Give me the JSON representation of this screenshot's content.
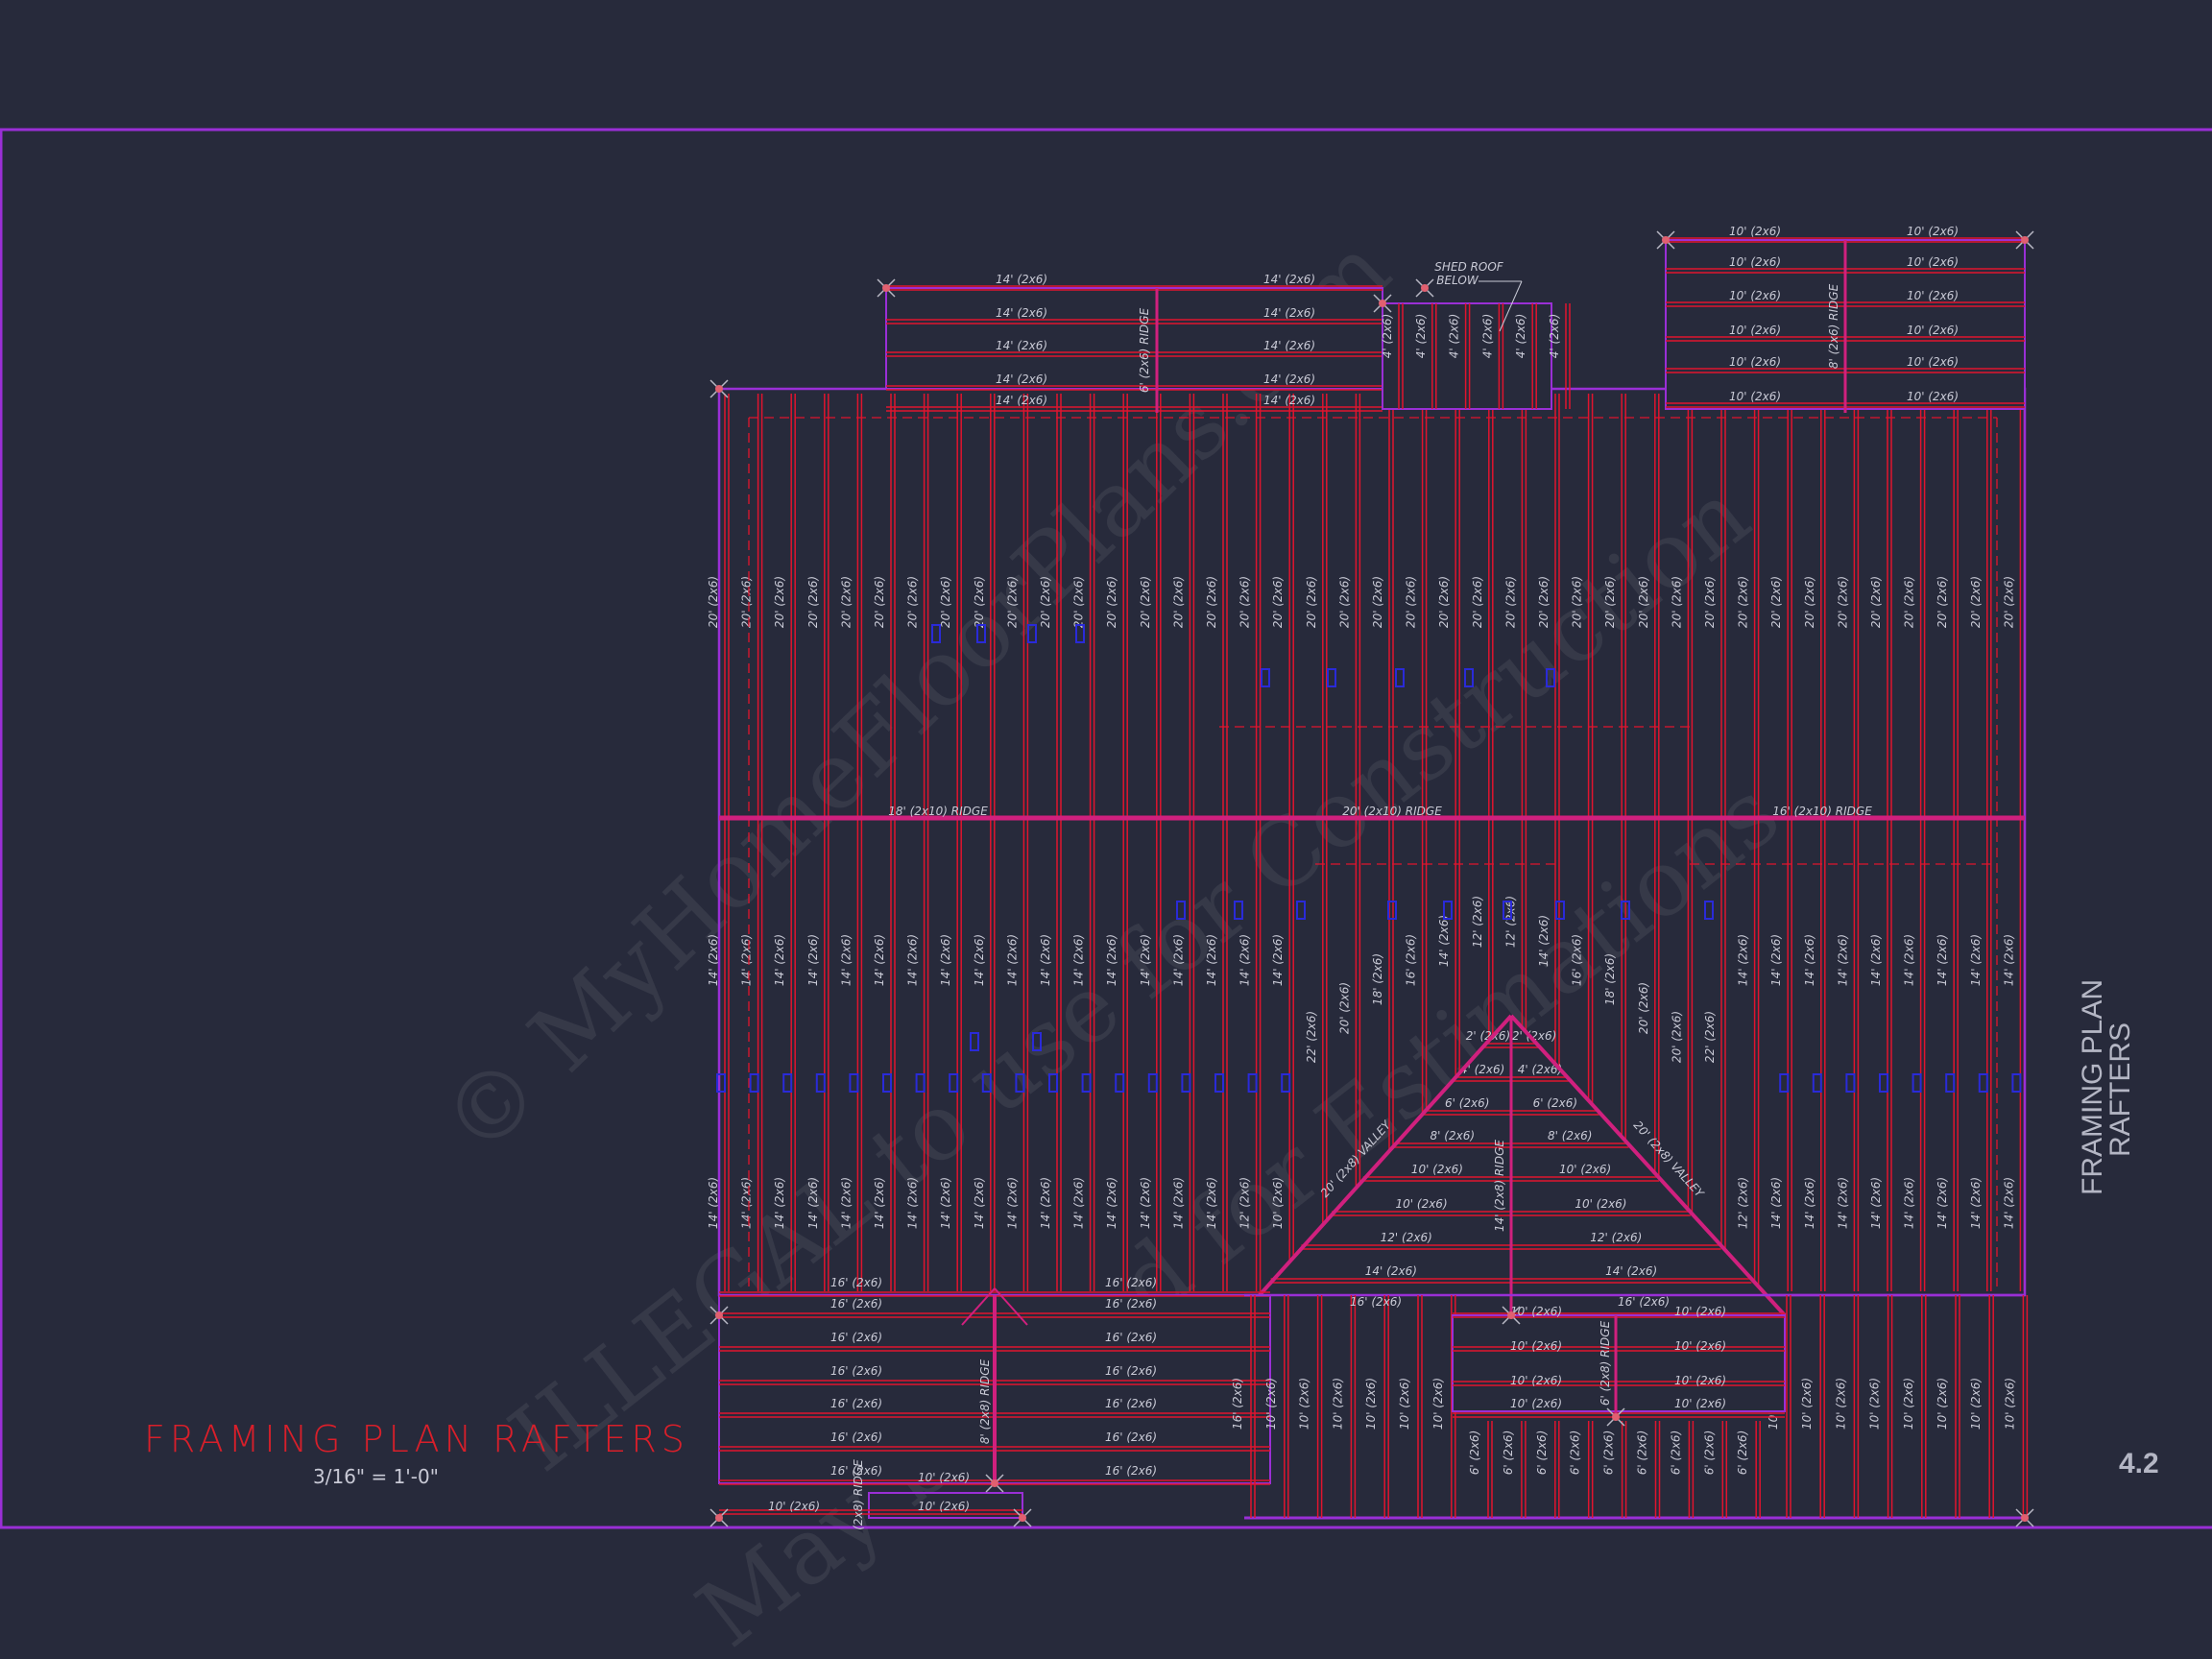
{
  "sheet": {
    "title": "FRAMING PLAN RAFTERS",
    "scale": "3/16\" = 1'-0\"",
    "side_title_line1": "FRAMING PLAN",
    "side_title_line2": "RAFTERS",
    "sheet_number": "4.2"
  },
  "watermark": [
    "© MyHomeFloorPlans.com",
    "ILLEGAL to use for Construction",
    "May be used for Estimations"
  ],
  "notes": {
    "shed_roof_line1": "SHED ROOF",
    "shed_roof_line2": "BELOW"
  },
  "colors": {
    "background": "#272a3b",
    "rafter": "#e0142e",
    "ridge": "#d0207e",
    "wall": "#9a2fd6",
    "post": "#2a2ad8",
    "text": "#c9cad6",
    "title": "#d81f2a"
  },
  "ridges": {
    "main_left": "18' (2x10) RIDGE",
    "main_center": "20' (2x10) RIDGE",
    "main_right": "16' (2x10) RIDGE",
    "top_left": "6' (2x6) RIDGE",
    "top_right": "8' (2x6) RIDGE",
    "gable": "14' (2x8) RIDGE",
    "bottom_left": "8' (2x8) RIDGE",
    "bottom_left_small": "(2x8) RIDGE",
    "bottom_center": "6' (2x8) RIDGE"
  },
  "valleys": [
    "20' (2x8) VALLEY",
    "20' (2x8) VALLEY"
  ],
  "rafters": {
    "upper": [
      "20' (2x6)",
      "20' (2x6)",
      "20' (2x6)",
      "20' (2x6)",
      "20' (2x6)",
      "20' (2x6)",
      "20' (2x6)",
      "20' (2x6)",
      "20' (2x6)",
      "20' (2x6)",
      "20' (2x6)",
      "20' (2x6)",
      "20' (2x6)",
      "20' (2x6)",
      "20' (2x6)",
      "20' (2x6)",
      "20' (2x6)",
      "20' (2x6)",
      "20' (2x6)",
      "20' (2x6)",
      "20' (2x6)",
      "20' (2x6)",
      "20' (2x6)",
      "20' (2x6)",
      "20' (2x6)",
      "20' (2x6)",
      "20' (2x6)",
      "20' (2x6)",
      "20' (2x6)",
      "20' (2x6)",
      "20' (2x6)",
      "20' (2x6)",
      "20' (2x6)",
      "20' (2x6)",
      "20' (2x6)",
      "20' (2x6)",
      "20' (2x6)",
      "20' (2x6)",
      "20' (2x6)",
      "20' (2x6)"
    ],
    "middle": [
      "14' (2x6)",
      "14' (2x6)",
      "14' (2x6)",
      "14' (2x6)",
      "14' (2x6)",
      "14' (2x6)",
      "14' (2x6)",
      "14' (2x6)",
      "14' (2x6)",
      "14' (2x6)",
      "14' (2x6)",
      "14' (2x6)",
      "14' (2x6)",
      "14' (2x6)",
      "14' (2x6)",
      "14' (2x6)",
      "14' (2x6)",
      "14' (2x6)",
      "22' (2x6)",
      "20' (2x6)",
      "18' (2x6)",
      "16' (2x6)",
      "14' (2x6)",
      "12' (2x6)",
      "12' (2x6)",
      "14' (2x6)",
      "16' (2x6)",
      "18' (2x6)",
      "20' (2x6)",
      "20' (2x6)",
      "22' (2x6)",
      "14' (2x6)",
      "14' (2x6)",
      "14' (2x6)",
      "14' (2x6)",
      "14' (2x6)",
      "14' (2x6)",
      "14' (2x6)",
      "14' (2x6)",
      "14' (2x6)"
    ],
    "lower": [
      "14' (2x6)",
      "14' (2x6)",
      "14' (2x6)",
      "14' (2x6)",
      "14' (2x6)",
      "14' (2x6)",
      "14' (2x6)",
      "14' (2x6)",
      "14' (2x6)",
      "14' (2x6)",
      "14' (2x6)",
      "14' (2x6)",
      "14' (2x6)",
      "14' (2x6)",
      "14' (2x6)",
      "14' (2x6)",
      "12' (2x6)",
      "10' (2x6)",
      null,
      null,
      null,
      null,
      null,
      null,
      null,
      null,
      null,
      null,
      null,
      null,
      null,
      "12' (2x6)",
      "14' (2x6)",
      "14' (2x6)",
      "14' (2x6)",
      "14' (2x6)",
      "14' (2x6)",
      "14' (2x6)",
      "14' (2x6)",
      "14' (2x6)"
    ],
    "top_left_rows": [
      [
        "14' (2x6)",
        "14' (2x6)"
      ],
      [
        "14' (2x6)",
        "14' (2x6)"
      ],
      [
        "14' (2x6)",
        "14' (2x6)"
      ],
      [
        "14' (2x6)",
        "14' (2x6)"
      ],
      [
        "14' (2x6)",
        "14' (2x6)"
      ]
    ],
    "top_right_rows": [
      [
        "10' (2x6)",
        "10' (2x6)"
      ],
      [
        "10' (2x6)",
        "10' (2x6)"
      ],
      [
        "10' (2x6)",
        "10' (2x6)"
      ],
      [
        "10' (2x6)",
        "10' (2x6)"
      ],
      [
        "10' (2x6)",
        "10' (2x6)"
      ],
      [
        "10' (2x6)",
        "10' (2x6)"
      ]
    ],
    "shed": [
      "4' (2x6)",
      "4' (2x6)",
      "4' (2x6)",
      "4' (2x6)",
      "4' (2x6)",
      "4' (2x6)"
    ],
    "gable_rows": [
      [
        "2' (2x6)",
        "2' (2x6)"
      ],
      [
        "4' (2x6)",
        "4' (2x6)"
      ],
      [
        "6' (2x6)",
        "6' (2x6)"
      ],
      [
        "8' (2x6)",
        "8' (2x6)"
      ],
      [
        "10' (2x6)",
        "10' (2x6)"
      ],
      [
        "10' (2x6)",
        "10' (2x6)"
      ],
      [
        "12' (2x6)",
        "12' (2x6)"
      ],
      [
        "14' (2x6)",
        "14' (2x6)"
      ]
    ],
    "bottom_left_rows": [
      [
        "16' (2x6)",
        "16' (2x6)"
      ],
      [
        "16' (2x6)",
        "16' (2x6)"
      ],
      [
        "16' (2x6)",
        "16' (2x6)"
      ],
      [
        "16' (2x6)",
        "16' (2x6)"
      ],
      [
        "16' (2x6)",
        "16' (2x6)"
      ],
      [
        "16' (2x6)",
        "16' (2x6)"
      ],
      [
        "16' (2x6)",
        "16' (2x6)"
      ]
    ],
    "bottom_left_small": [
      "10' (2x6)",
      "10' (2x6)",
      "10' (2x6)"
    ],
    "bottom_center_rows": [
      [
        "16' (2x6)",
        "16' (2x6)"
      ],
      [
        "10' (2x6)",
        "10' (2x6)"
      ],
      [
        "10' (2x6)",
        "10' (2x6)"
      ],
      [
        "10' (2x6)",
        "10' (2x6)"
      ],
      [
        "10' (2x6)",
        "10' (2x6)"
      ]
    ],
    "bottom_right_left_cols": [
      "16' (2x6)",
      "10' (2x6)",
      "10' (2x6)",
      "10' (2x6)",
      "10' (2x6)",
      "10' (2x6)",
      "10' (2x6)"
    ],
    "bottom_right_right_cols": [
      "10' (2x6)",
      "10' (2x6)",
      "10' (2x6)",
      "10' (2x6)",
      "10' (2x6)",
      "10' (2x6)",
      "10' (2x6)",
      "10' (2x6)"
    ],
    "bottom_center_cols": [
      "6' (2x6)",
      "6' (2x6)",
      "6' (2x6)",
      "6' (2x6)",
      "6' (2x6)",
      "6' (2x6)",
      "6' (2x6)",
      "6' (2x6)",
      "6' (2x6)"
    ]
  }
}
